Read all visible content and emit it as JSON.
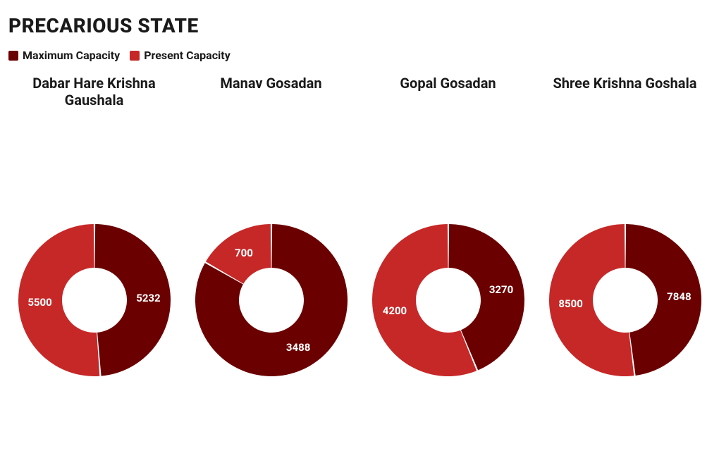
{
  "title": "PRECARIOUS STATE",
  "legend": {
    "maximum": {
      "label": "Maximum Capacity",
      "color": "#6b0000"
    },
    "present": {
      "label": "Present Capacity",
      "color": "#c62828"
    }
  },
  "background_color": "#ffffff",
  "title_color": "#1a1a1a",
  "title_fontsize": 28,
  "legend_fontsize": 16,
  "chart_title_fontsize": 20,
  "value_label_fontsize": 15,
  "value_label_color": "#ffffff",
  "donut": {
    "outer_radius": 108,
    "inner_radius": 46,
    "gap_deg": 1.2,
    "start_angle_deg": 0
  },
  "charts": [
    {
      "name": "Dabar Hare Krishna Gaushala",
      "maximum": 5232,
      "present": 5500,
      "maximum_color": "#6b0000",
      "present_color": "#c62828"
    },
    {
      "name": "Manav Gosadan",
      "maximum": 3488,
      "present": 700,
      "maximum_color": "#6b0000",
      "present_color": "#c62828"
    },
    {
      "name": "Gopal Gosadan",
      "maximum": 3270,
      "present": 4200,
      "maximum_color": "#6b0000",
      "present_color": "#c62828"
    },
    {
      "name": "Shree Krishna Goshala",
      "maximum": 7848,
      "present": 8500,
      "maximum_color": "#6b0000",
      "present_color": "#c62828"
    }
  ]
}
